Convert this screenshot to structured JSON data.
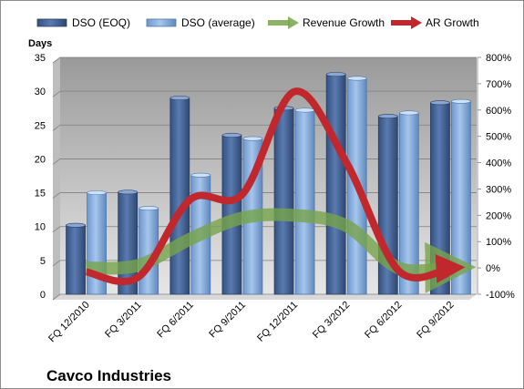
{
  "chart_data": {
    "type": "bar",
    "title": "Cavco Industries",
    "categories": [
      "FQ 12/2010",
      "FQ 3/2011",
      "FQ 6/2011",
      "FQ 9/2011",
      "FQ 12/2011",
      "FQ 3/2012",
      "FQ 6/2012",
      "FQ 9/2012"
    ],
    "ylabel": "Days",
    "ylim": [
      0,
      35
    ],
    "yticks": [
      0,
      5,
      10,
      15,
      20,
      25,
      30,
      35
    ],
    "y2lim": [
      -100,
      800
    ],
    "y2ticks": [
      "-100%",
      "0%",
      "100%",
      "200%",
      "300%",
      "400%",
      "500%",
      "600%",
      "700%",
      "800%"
    ],
    "y2values": [
      -100,
      0,
      100,
      200,
      300,
      400,
      500,
      600,
      700,
      800
    ],
    "legend_position": "top",
    "grid": true,
    "series": [
      {
        "name": "DSO (EOQ)",
        "kind": "bar",
        "axis": "left",
        "color": "#4f6fa3",
        "values": [
          10.2,
          15.1,
          29.0,
          23.5,
          27.5,
          32.5,
          26.3,
          28.3
        ]
      },
      {
        "name": "DSO (average)",
        "kind": "bar",
        "axis": "left",
        "color": "#8fb4e3",
        "values": [
          15.0,
          12.7,
          17.6,
          23.0,
          27.2,
          31.9,
          26.8,
          28.5
        ]
      },
      {
        "name": "Revenue Growth",
        "kind": "line",
        "axis": "right",
        "color": "#77a44b",
        "values": [
          0,
          10,
          110,
          190,
          200,
          160,
          0,
          2
        ]
      },
      {
        "name": "AR Growth",
        "kind": "line",
        "axis": "right",
        "color": "#c0282e",
        "values": [
          -15,
          -35,
          260,
          280,
          670,
          400,
          -10,
          0
        ]
      }
    ]
  }
}
